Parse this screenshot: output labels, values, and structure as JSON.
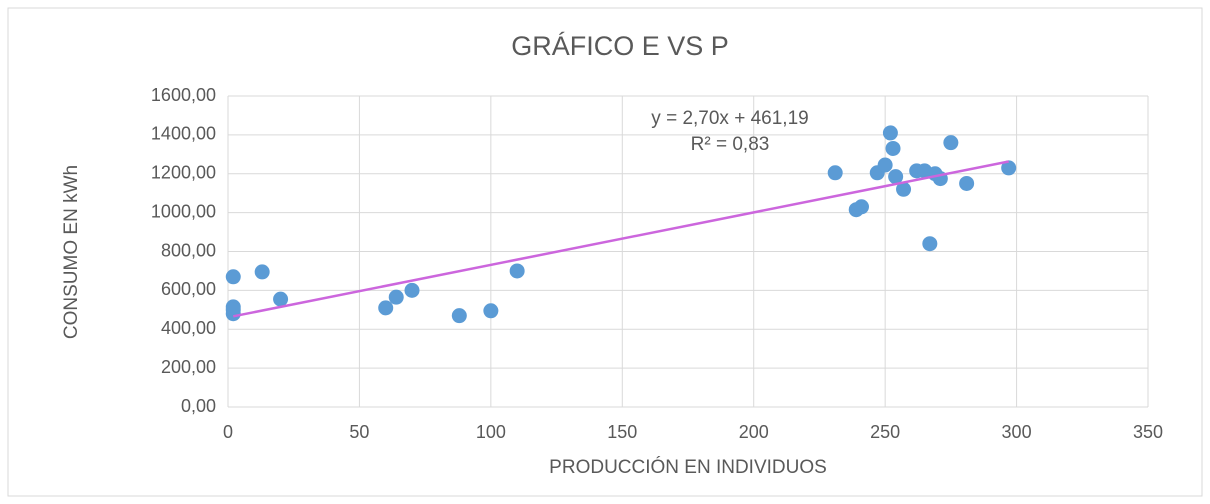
{
  "chart_data": {
    "type": "scatter",
    "title": "GRÁFICO E VS P",
    "x_label": "PRODUCCIÓN EN INDIVIDUOS",
    "y_label": "CONSUMO EN kWh",
    "series": [
      {
        "color": "#5b9bd5",
        "x": [
          2,
          2,
          2,
          2,
          13,
          20,
          60,
          64,
          70,
          88,
          100,
          110,
          231,
          239,
          241,
          247,
          250,
          252,
          253,
          254,
          257,
          262,
          265,
          267,
          269,
          271,
          275,
          281,
          297
        ],
        "values": [
          670,
          515,
          480,
          500,
          695,
          555,
          510,
          565,
          600,
          470,
          495,
          700,
          1205,
          1015,
          1030,
          1205,
          1245,
          1410,
          1330,
          1185,
          1120,
          1215,
          1215,
          840,
          1200,
          1175,
          1360,
          1150,
          1230
        ]
      }
    ],
    "trendline": {
      "label": "y = 2,70x + 461,19",
      "r2_label": "R² = 0,83",
      "slope": 2.7,
      "intercept": 461.19,
      "color": "#cc66dd"
    },
    "xlim": [
      0,
      350
    ],
    "xticks": [
      0,
      50,
      100,
      150,
      200,
      250,
      300,
      350
    ],
    "ylim": [
      0,
      1600
    ],
    "yticks": [
      {
        "value": 0,
        "label": "0,00"
      },
      {
        "value": 200,
        "label": "200,00"
      },
      {
        "value": 400,
        "label": "400,00"
      },
      {
        "value": 600,
        "label": "600,00"
      },
      {
        "value": 800,
        "label": "800,00"
      },
      {
        "value": 1000,
        "label": "1000,00"
      },
      {
        "value": 1200,
        "label": "1200,00"
      },
      {
        "value": 1400,
        "label": "1400,00"
      },
      {
        "value": 1600,
        "label": "1600,00"
      }
    ],
    "grid": true
  }
}
